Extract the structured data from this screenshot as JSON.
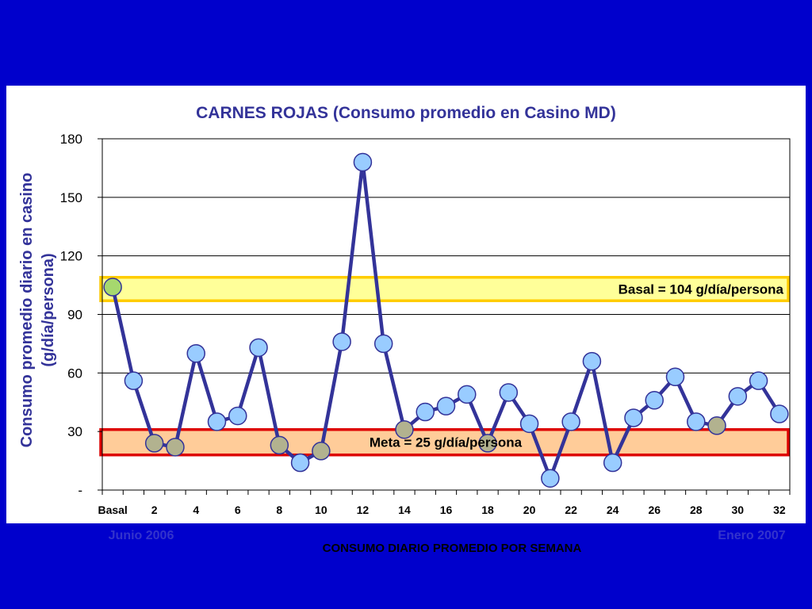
{
  "chart_data": {
    "type": "line",
    "title": "CARNES ROJAS (Consumo promedio en Casino MD)",
    "ylabel_line1": "Consumo promedio diario en casino",
    "ylabel_line2": "(g/día/persona)",
    "xlabel": "CONSUMO DIARIO PROMEDIO POR SEMANA",
    "ylim": [
      0,
      180
    ],
    "yticks": [
      "-",
      "30",
      "60",
      "90",
      "120",
      "150",
      "180"
    ],
    "ytick_values": [
      0,
      30,
      60,
      90,
      120,
      150,
      180
    ],
    "x": [
      0,
      1,
      2,
      3,
      4,
      5,
      6,
      7,
      8,
      9,
      10,
      11,
      12,
      13,
      14,
      15,
      16,
      17,
      18,
      19,
      20,
      21,
      22,
      23,
      24,
      25,
      26,
      27,
      28,
      29,
      30,
      31,
      32
    ],
    "xtick_labels": [
      "Basal",
      "2",
      "4",
      "6",
      "8",
      "10",
      "12",
      "14",
      "16",
      "18",
      "20",
      "22",
      "24",
      "26",
      "28",
      "30",
      "32"
    ],
    "xtick_positions": [
      0,
      2,
      4,
      6,
      8,
      10,
      12,
      14,
      16,
      18,
      20,
      22,
      24,
      26,
      28,
      30,
      32
    ],
    "series": [
      {
        "values": [
          104,
          56,
          24,
          22,
          70,
          35,
          38,
          73,
          23,
          14,
          20,
          76,
          168,
          75,
          31,
          40,
          43,
          49,
          24,
          50,
          34,
          6,
          35,
          66,
          14,
          37,
          46,
          58,
          35,
          33,
          48,
          56,
          39
        ]
      }
    ],
    "point_colors": [
      "#a6d86e",
      "#99ccff",
      "#b2b28f",
      "#b2b28f",
      "#99ccff",
      "#99ccff",
      "#99ccff",
      "#99ccff",
      "#b2b28f",
      "#99ccff",
      "#b2b28f",
      "#99ccff",
      "#99ccff",
      "#99ccff",
      "#b2b28f",
      "#99ccff",
      "#99ccff",
      "#99ccff",
      "#b2b28f",
      "#99ccff",
      "#99ccff",
      "#99ccff",
      "#99ccff",
      "#99ccff",
      "#99ccff",
      "#99ccff",
      "#99ccff",
      "#99ccff",
      "#99ccff",
      "#b2b28f",
      "#99ccff",
      "#99ccff",
      "#99ccff"
    ],
    "bands": [
      {
        "label": "Basal = 104 g/día/persona",
        "y_from": 97,
        "y_to": 109,
        "fill": "#ffff99",
        "stroke": "#ffcc00"
      },
      {
        "label": "Meta = 25 g/día/persona",
        "y_from": 18,
        "y_to": 31,
        "fill": "#ffcc99",
        "stroke": "#dd0000"
      }
    ],
    "annotations": {
      "left": "Junio 2006",
      "right": "Enero 2007"
    },
    "grid": true,
    "line_color": "#333399",
    "marker_stroke": "#333399"
  },
  "colors": {
    "background": "#0000cc",
    "panel": "#ffffff",
    "title": "#333399",
    "date_text": "#3333cc"
  }
}
